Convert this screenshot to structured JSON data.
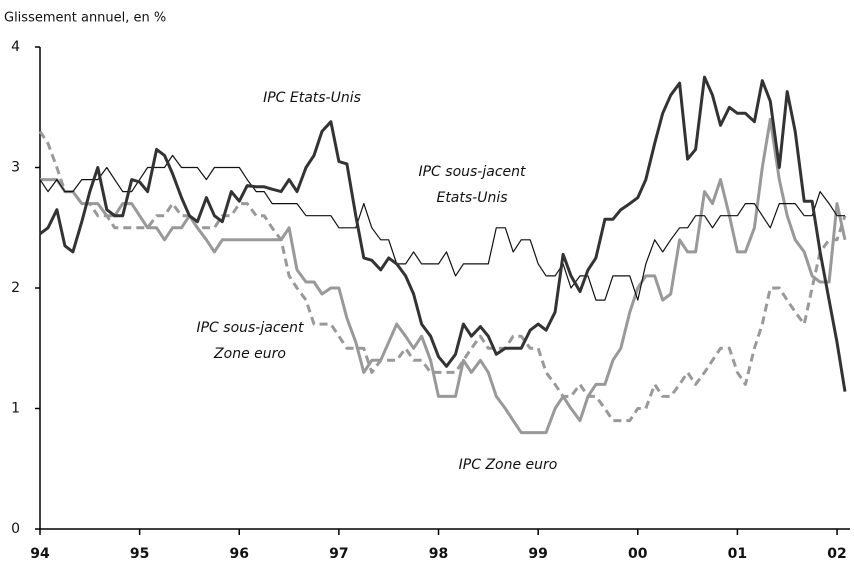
{
  "chart_data": {
    "type": "line",
    "ylabel": "Glissement annuel, en %",
    "annotations": [
      [
        "IPC Etats-Unis"
      ],
      [
        "IPC sous-jacent",
        "Etats-Unis"
      ],
      [
        "IPC sous-jacent",
        "Zone euro"
      ],
      [
        "IPC Zone euro"
      ]
    ],
    "x": [
      1994,
      1994.08,
      1994.17,
      1994.25,
      1994.33,
      1994.42,
      1994.5,
      1994.58,
      1994.67,
      1994.75,
      1994.83,
      1994.92,
      1995,
      1995.08,
      1995.17,
      1995.25,
      1995.33,
      1995.42,
      1995.5,
      1995.58,
      1995.67,
      1995.75,
      1995.83,
      1995.92,
      1996,
      1996.08,
      1996.17,
      1996.25,
      1996.33,
      1996.42,
      1996.5,
      1996.58,
      1996.67,
      1996.75,
      1996.83,
      1996.92,
      1997,
      1997.08,
      1997.17,
      1997.25,
      1997.33,
      1997.42,
      1997.5,
      1997.58,
      1997.67,
      1997.75,
      1997.83,
      1997.92,
      1998,
      1998.08,
      1998.17,
      1998.25,
      1998.33,
      1998.42,
      1998.5,
      1998.58,
      1998.67,
      1998.75,
      1998.83,
      1998.92,
      1999,
      1999.08,
      1999.17,
      1999.25,
      1999.33,
      1999.42,
      1999.5,
      1999.58,
      1999.67,
      1999.75,
      1999.83,
      1999.92,
      2000,
      2000.08,
      2000.17,
      2000.25,
      2000.33,
      2000.42,
      2000.5,
      2000.58,
      2000.67,
      2000.75,
      2000.83,
      2000.92,
      2001,
      2001.08,
      2001.17,
      2001.25,
      2001.33,
      2001.42,
      2001.5,
      2001.58,
      2001.67,
      2001.75,
      2001.83,
      2001.92,
      2002,
      2002.08
    ],
    "series": [
      {
        "name": "IPC Etats-Unis",
        "color": "#333333",
        "dashed": false,
        "values": [
          2.45,
          2.5,
          2.65,
          2.35,
          2.3,
          2.55,
          2.8,
          3.0,
          2.65,
          2.6,
          2.6,
          2.9,
          2.88,
          2.8,
          3.15,
          3.1,
          2.95,
          2.75,
          2.6,
          2.55,
          2.75,
          2.6,
          2.55,
          2.8,
          2.72,
          2.85,
          2.84,
          2.84,
          2.82,
          2.8,
          2.9,
          2.8,
          3.0,
          3.1,
          3.3,
          3.38,
          3.05,
          3.03,
          2.6,
          2.25,
          2.23,
          2.15,
          2.25,
          2.2,
          2.1,
          1.95,
          1.7,
          1.6,
          1.43,
          1.35,
          1.45,
          1.7,
          1.6,
          1.68,
          1.6,
          1.45,
          1.5,
          1.5,
          1.5,
          1.65,
          1.7,
          1.65,
          1.8,
          2.28,
          2.1,
          1.97,
          2.15,
          2.25,
          2.57,
          2.57,
          2.65,
          2.7,
          2.75,
          2.9,
          3.2,
          3.45,
          3.6,
          3.7,
          3.07,
          3.15,
          3.75,
          3.6,
          3.35,
          3.5,
          3.45,
          3.45,
          3.38,
          3.72,
          3.55,
          3.0,
          3.63,
          3.3,
          2.72,
          2.72,
          2.3,
          1.9,
          1.55,
          1.14
        ]
      },
      {
        "name": "IPC sous-jacent Etats-Unis",
        "color": "#111111",
        "dashed": false,
        "values": [
          2.9,
          2.8,
          2.9,
          2.8,
          2.8,
          2.9,
          2.9,
          2.9,
          3.0,
          2.9,
          2.8,
          2.8,
          2.9,
          3.0,
          3.0,
          3.0,
          3.1,
          3.0,
          3.0,
          3.0,
          2.9,
          3.0,
          3.0,
          3.0,
          3.0,
          2.9,
          2.8,
          2.8,
          2.7,
          2.7,
          2.7,
          2.7,
          2.6,
          2.6,
          2.6,
          2.6,
          2.5,
          2.5,
          2.5,
          2.7,
          2.5,
          2.4,
          2.4,
          2.2,
          2.2,
          2.3,
          2.2,
          2.2,
          2.2,
          2.3,
          2.1,
          2.2,
          2.2,
          2.2,
          2.2,
          2.5,
          2.5,
          2.3,
          2.4,
          2.4,
          2.2,
          2.1,
          2.1,
          2.2,
          2.0,
          2.1,
          2.1,
          1.9,
          1.9,
          2.1,
          2.1,
          2.1,
          1.9,
          2.2,
          2.4,
          2.3,
          2.4,
          2.5,
          2.5,
          2.6,
          2.6,
          2.5,
          2.6,
          2.6,
          2.6,
          2.7,
          2.7,
          2.6,
          2.5,
          2.7,
          2.7,
          2.7,
          2.6,
          2.6,
          2.8,
          2.7,
          2.6,
          2.6
        ]
      },
      {
        "name": "IPC sous-jacent Zone euro",
        "color": "#999999",
        "dashed": true,
        "values": [
          3.3,
          3.2,
          3.0,
          2.8,
          2.8,
          2.7,
          2.7,
          2.6,
          2.6,
          2.5,
          2.5,
          2.5,
          2.5,
          2.5,
          2.6,
          2.6,
          2.7,
          2.6,
          2.6,
          2.5,
          2.5,
          2.5,
          2.6,
          2.6,
          2.7,
          2.7,
          2.6,
          2.6,
          2.5,
          2.4,
          2.1,
          2.0,
          1.9,
          1.7,
          1.7,
          1.7,
          1.6,
          1.5,
          1.5,
          1.5,
          1.3,
          1.4,
          1.4,
          1.4,
          1.5,
          1.4,
          1.4,
          1.3,
          1.3,
          1.3,
          1.3,
          1.4,
          1.5,
          1.6,
          1.5,
          1.5,
          1.5,
          1.6,
          1.6,
          1.5,
          1.5,
          1.3,
          1.2,
          1.1,
          1.1,
          1.2,
          1.1,
          1.1,
          1.0,
          0.9,
          0.9,
          0.9,
          1.0,
          1.0,
          1.2,
          1.1,
          1.1,
          1.2,
          1.3,
          1.2,
          1.3,
          1.4,
          1.5,
          1.5,
          1.3,
          1.2,
          1.5,
          1.7,
          2.0,
          2.0,
          1.9,
          1.8,
          1.7,
          2.0,
          2.3,
          2.4,
          2.4,
          2.6
        ]
      },
      {
        "name": "IPC Zone euro",
        "color": "#999999",
        "dashed": false,
        "values": [
          2.9,
          2.9,
          2.9,
          2.8,
          2.8,
          2.7,
          2.7,
          2.7,
          2.6,
          2.6,
          2.7,
          2.7,
          2.6,
          2.5,
          2.5,
          2.4,
          2.5,
          2.5,
          2.6,
          2.5,
          2.4,
          2.3,
          2.4,
          2.4,
          2.4,
          2.4,
          2.4,
          2.4,
          2.4,
          2.4,
          2.5,
          2.15,
          2.05,
          2.05,
          1.95,
          2.0,
          2.0,
          1.75,
          1.55,
          1.3,
          1.4,
          1.4,
          1.55,
          1.7,
          1.6,
          1.5,
          1.6,
          1.4,
          1.1,
          1.1,
          1.1,
          1.4,
          1.3,
          1.4,
          1.3,
          1.1,
          1.0,
          0.9,
          0.8,
          0.8,
          0.8,
          0.8,
          1.0,
          1.1,
          1.0,
          0.9,
          1.1,
          1.2,
          1.2,
          1.4,
          1.5,
          1.8,
          2.0,
          2.1,
          2.1,
          1.9,
          1.95,
          2.4,
          2.3,
          2.3,
          2.8,
          2.7,
          2.9,
          2.6,
          2.3,
          2.3,
          2.5,
          3.0,
          3.4,
          2.9,
          2.6,
          2.4,
          2.3,
          2.1,
          2.05,
          2.05,
          2.7,
          2.4
        ]
      }
    ],
    "xlim": [
      1994,
      2002.13
    ],
    "xticks": [
      {
        "value": 1994,
        "label": "94"
      },
      {
        "value": 1995,
        "label": "95"
      },
      {
        "value": 1996,
        "label": "96"
      },
      {
        "value": 1997,
        "label": "97"
      },
      {
        "value": 1998,
        "label": "98"
      },
      {
        "value": 1999,
        "label": "99"
      },
      {
        "value": 2000,
        "label": "00"
      },
      {
        "value": 2001,
        "label": "01"
      },
      {
        "value": 2002,
        "label": "02"
      }
    ],
    "ylim": [
      0,
      4
    ],
    "yticks": [
      0,
      1,
      2,
      3,
      4
    ],
    "grid": false
  }
}
